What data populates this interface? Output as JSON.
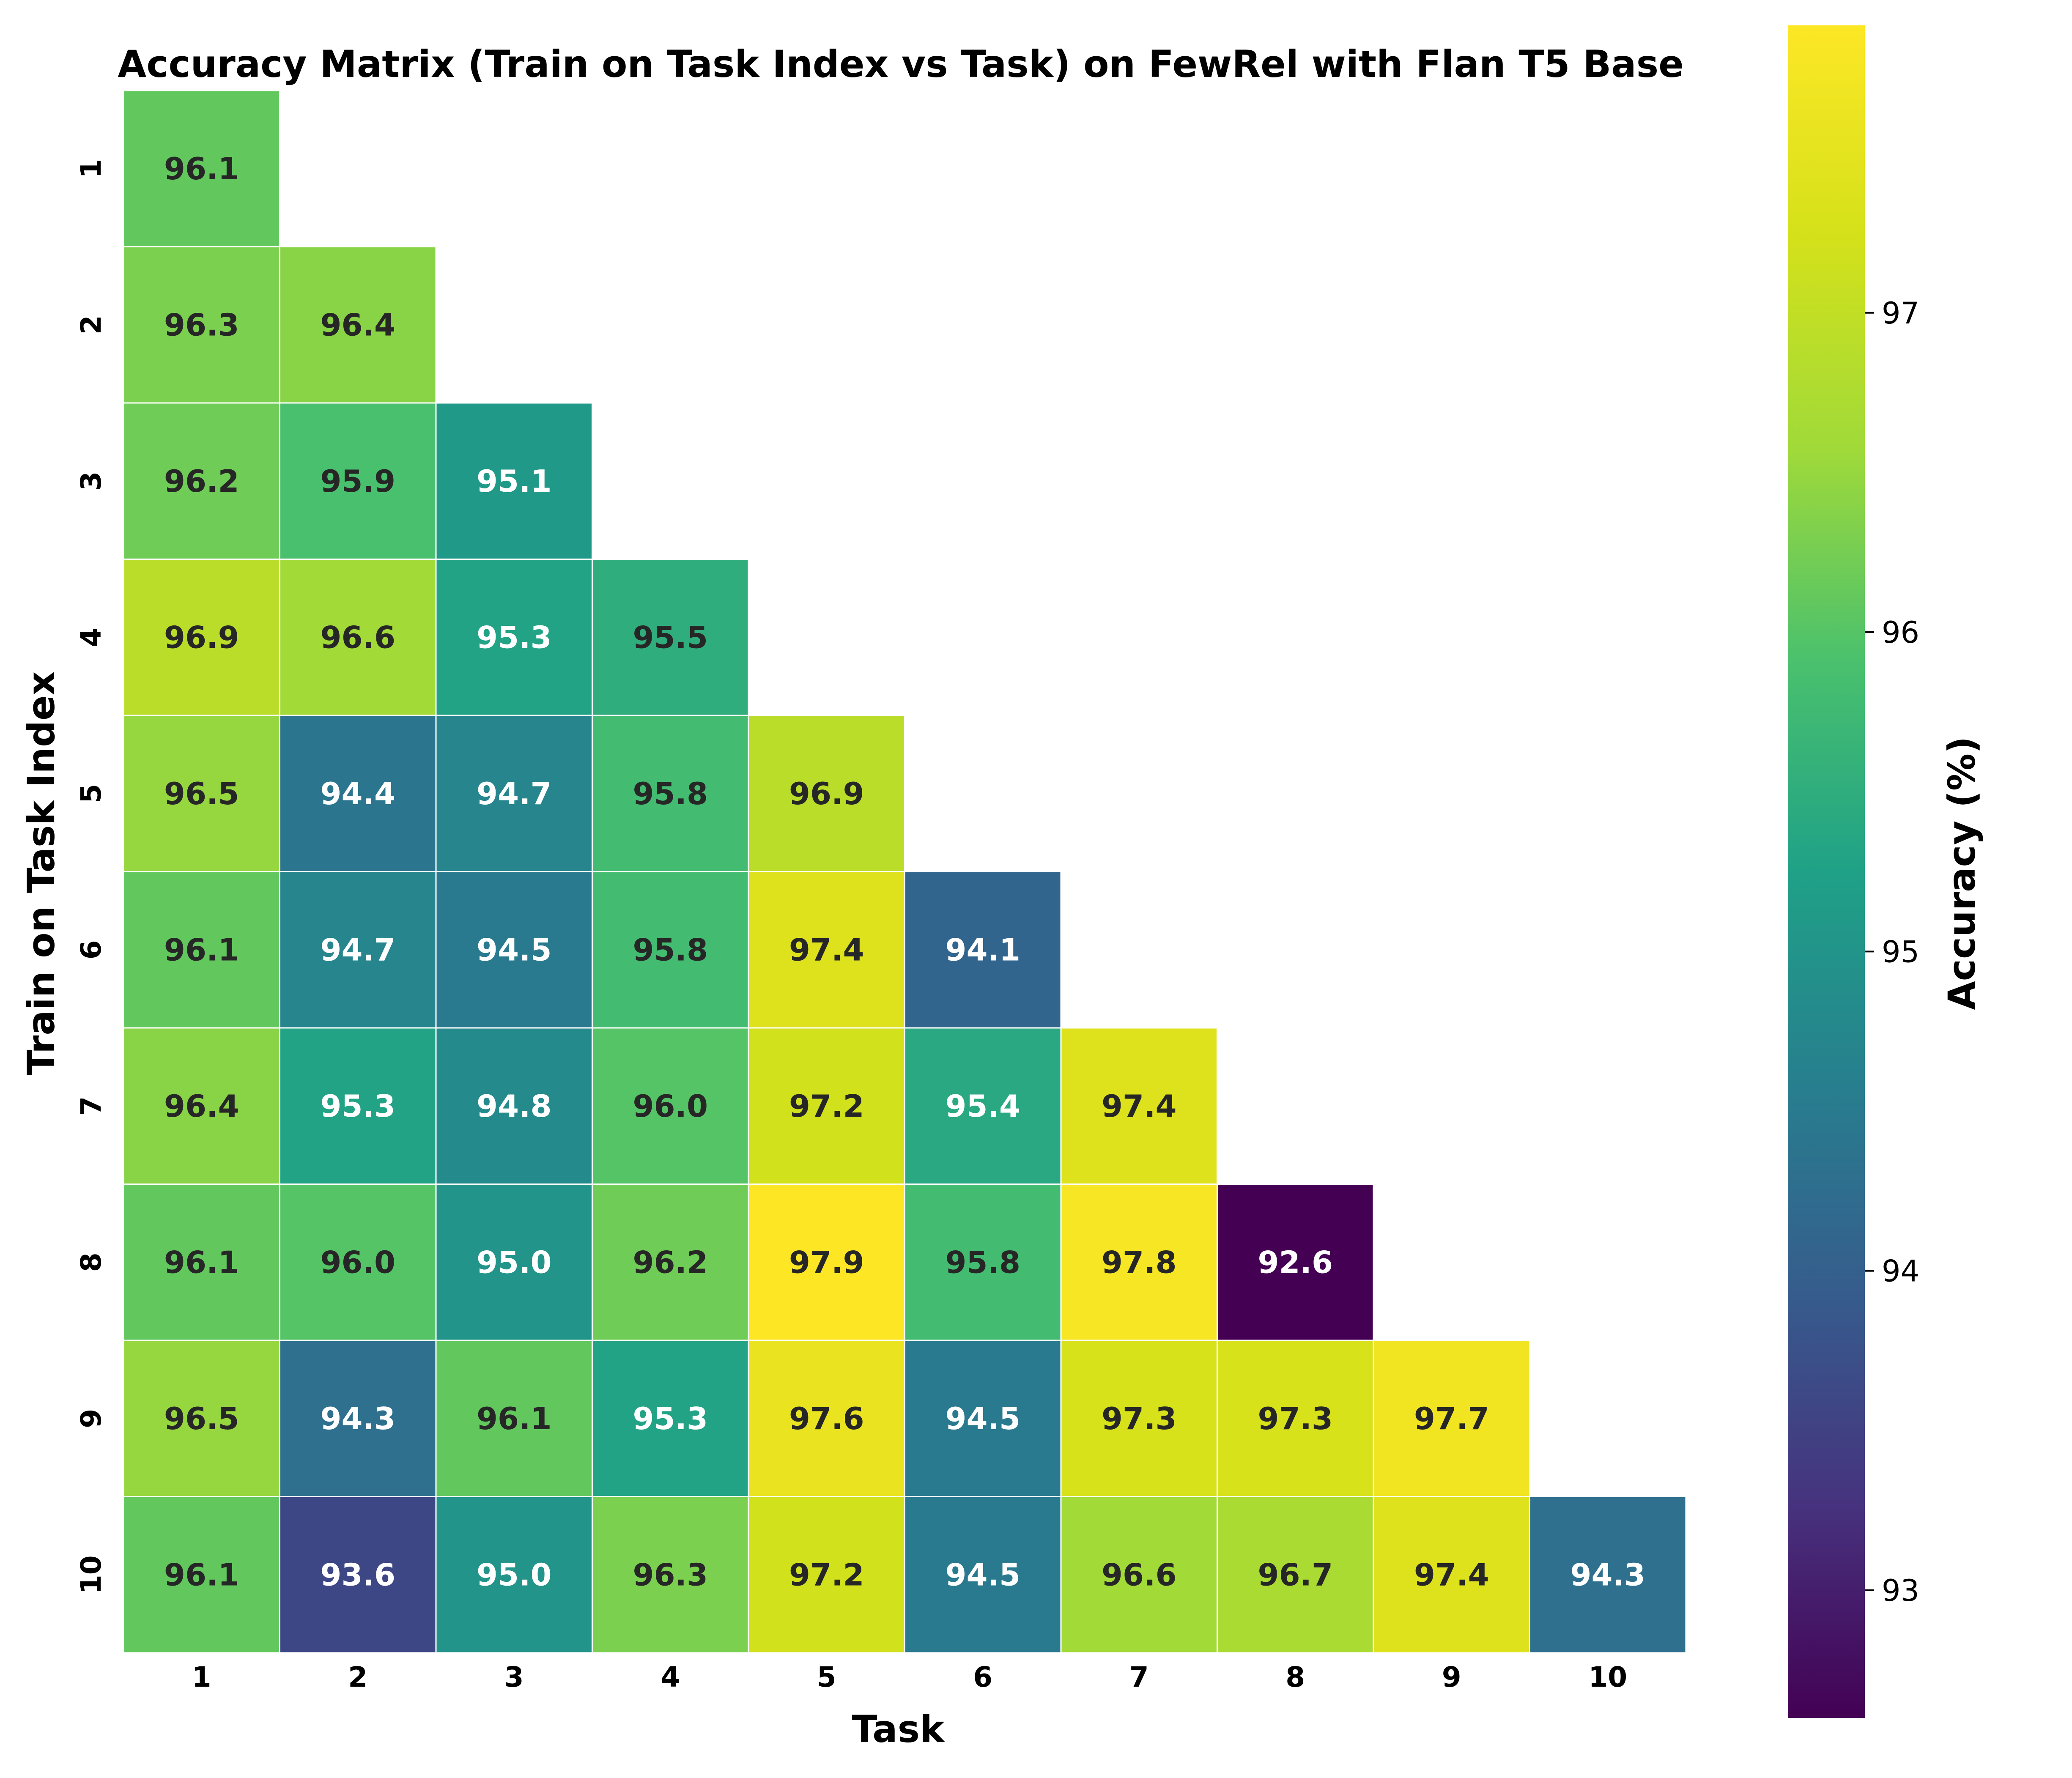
{
  "chart_data": {
    "type": "heatmap",
    "title": "Accuracy Matrix (Train on Task Index vs Task) on FewRel with Flan T5 Base",
    "xlabel": "Task",
    "ylabel": "Train on Task Index",
    "x_categories": [
      "1",
      "2",
      "3",
      "4",
      "5",
      "6",
      "7",
      "8",
      "9",
      "10"
    ],
    "y_categories": [
      "1",
      "2",
      "3",
      "4",
      "5",
      "6",
      "7",
      "8",
      "9",
      "10"
    ],
    "values": [
      [
        96.1
      ],
      [
        96.3,
        96.4
      ],
      [
        96.2,
        95.9,
        95.1
      ],
      [
        96.9,
        96.6,
        95.3,
        95.5
      ],
      [
        96.5,
        94.4,
        94.7,
        95.8,
        96.9
      ],
      [
        96.1,
        94.7,
        94.5,
        95.8,
        97.4,
        94.1
      ],
      [
        96.4,
        95.3,
        94.8,
        96.0,
        97.2,
        95.4,
        97.4
      ],
      [
        96.1,
        96.0,
        95.0,
        96.2,
        97.9,
        95.8,
        97.8,
        92.6
      ],
      [
        96.5,
        94.3,
        96.1,
        95.3,
        97.6,
        94.5,
        97.3,
        97.3,
        97.7
      ],
      [
        96.1,
        93.6,
        95.0,
        96.3,
        97.2,
        94.5,
        96.6,
        96.7,
        97.4,
        94.3
      ]
    ],
    "mask": "upper triangle above diagonal",
    "colormap": "viridis",
    "vmin": 92.6,
    "vmax": 97.9,
    "colorbar": {
      "label": "Accuracy (%)",
      "ticks": [
        93,
        94,
        95,
        96,
        97
      ],
      "position": "right"
    },
    "grid": false,
    "cell_value_format": "one decimal"
  }
}
